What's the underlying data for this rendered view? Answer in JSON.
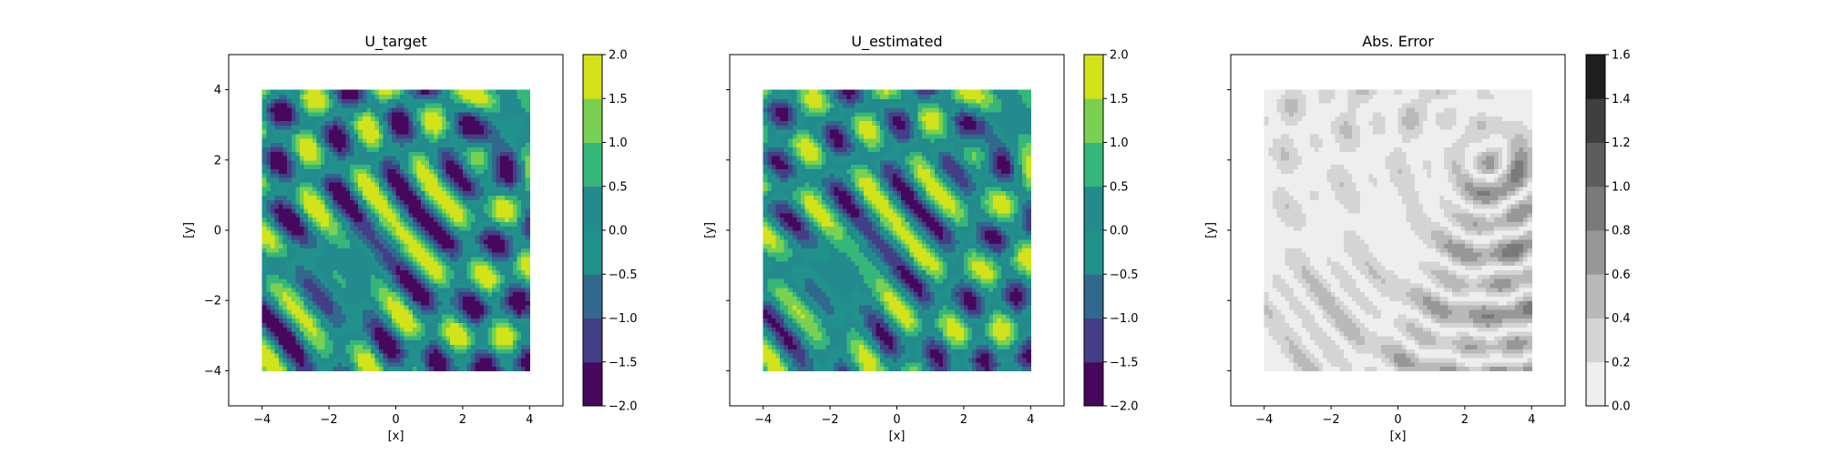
{
  "chart_data": [
    {
      "type": "heatmap",
      "title": "U_target",
      "xlabel": "[x]",
      "ylabel": "[y]",
      "xlim": [
        -5,
        5
      ],
      "ylim": [
        -5,
        5
      ],
      "data_extent": [
        -4,
        4,
        -4,
        4
      ],
      "x_ticks": [
        "−4",
        "−2",
        "0",
        "2",
        "4"
      ],
      "x_tick_values": [
        -4,
        -2,
        0,
        2,
        4
      ],
      "y_ticks": [
        "−4",
        "−2",
        "0",
        "2",
        "4"
      ],
      "y_tick_values": [
        -4,
        -2,
        0,
        2,
        4
      ],
      "show_y_tick_labels": true,
      "colormap": "viridis",
      "field": "target",
      "colorbar": {
        "levels": [
          -2.0,
          -1.5,
          -1.0,
          -0.5,
          0.0,
          0.5,
          1.0,
          1.5,
          2.0
        ],
        "labels": [
          "−2.0",
          "−1.5",
          "−1.0",
          "−0.5",
          "0.0",
          "0.5",
          "1.0",
          "1.5",
          "2.0"
        ],
        "colors": [
          "#46085c",
          "#433e85",
          "#31688e",
          "#21918c",
          "#238a8d",
          "#35b779",
          "#7ad151",
          "#d2e21b"
        ]
      }
    },
    {
      "type": "heatmap",
      "title": "U_estimated",
      "xlabel": "[x]",
      "ylabel": "[y]",
      "xlim": [
        -5,
        5
      ],
      "ylim": [
        -5,
        5
      ],
      "data_extent": [
        -4,
        4,
        -4,
        4
      ],
      "x_ticks": [
        "−4",
        "−2",
        "0",
        "2",
        "4"
      ],
      "x_tick_values": [
        -4,
        -2,
        0,
        2,
        4
      ],
      "y_ticks": [
        "",
        "",
        "",
        "",
        ""
      ],
      "y_tick_values": [
        -4,
        -2,
        0,
        2,
        4
      ],
      "show_y_tick_labels": false,
      "colormap": "viridis",
      "field": "estimated",
      "colorbar": {
        "levels": [
          -2.0,
          -1.5,
          -1.0,
          -0.5,
          0.0,
          0.5,
          1.0,
          1.5,
          2.0
        ],
        "labels": [
          "−2.0",
          "−1.5",
          "−1.0",
          "−0.5",
          "0.0",
          "0.5",
          "1.0",
          "1.5",
          "2.0"
        ],
        "colors": [
          "#46085c",
          "#433e85",
          "#31688e",
          "#21918c",
          "#238a8d",
          "#35b779",
          "#7ad151",
          "#d2e21b"
        ]
      }
    },
    {
      "type": "heatmap",
      "title": "Abs. Error",
      "xlabel": "[x]",
      "ylabel": "[y]",
      "xlim": [
        -5,
        5
      ],
      "ylim": [
        -5,
        5
      ],
      "data_extent": [
        -4,
        4,
        -4,
        4
      ],
      "x_ticks": [
        "−4",
        "−2",
        "0",
        "2",
        "4"
      ],
      "x_tick_values": [
        -4,
        -2,
        0,
        2,
        4
      ],
      "y_ticks": [
        "",
        "",
        "",
        "",
        ""
      ],
      "y_tick_values": [
        -4,
        -2,
        0,
        2,
        4
      ],
      "show_y_tick_labels": false,
      "colormap": "greys",
      "field": "error",
      "colorbar": {
        "levels": [
          0.0,
          0.2,
          0.4,
          0.6,
          0.8,
          1.0,
          1.2,
          1.4,
          1.6
        ],
        "labels": [
          "0.0",
          "0.2",
          "0.4",
          "0.6",
          "0.8",
          "1.0",
          "1.2",
          "1.4",
          "1.6"
        ],
        "colors": [
          "#eeeeee",
          "#d4d4d4",
          "#b9b9b9",
          "#979797",
          "#7a7a7a",
          "#5d5d5d",
          "#3f3f3f",
          "#1e1e1e"
        ]
      }
    }
  ]
}
